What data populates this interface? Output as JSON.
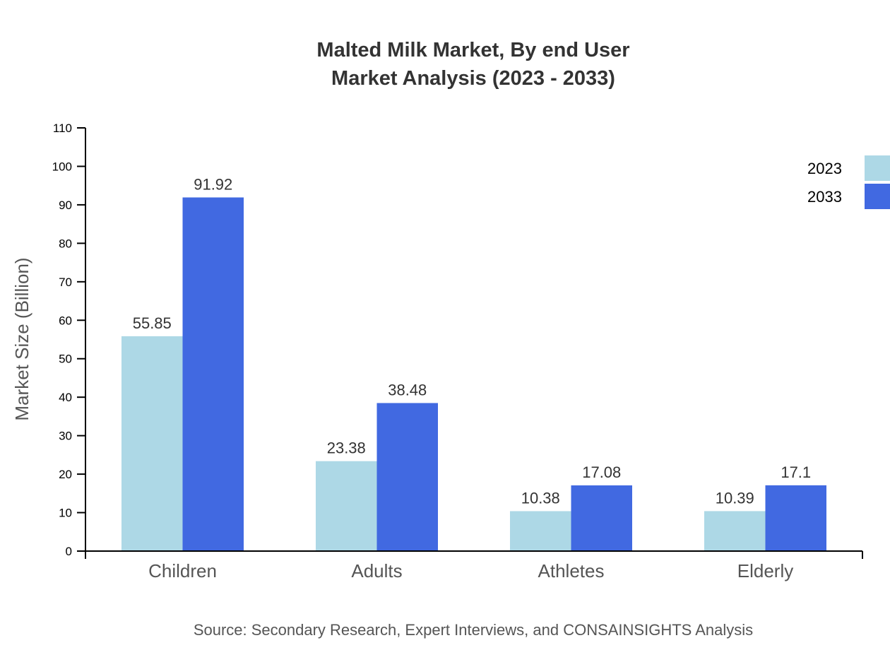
{
  "chart_data": {
    "type": "bar",
    "title": "Malted Milk Market, By end User",
    "subtitle": "Market Analysis (2023 - 2033)",
    "xlabel": "",
    "ylabel": "Market Size (Billion)",
    "ylim": [
      0,
      110
    ],
    "yticks": [
      0,
      10,
      20,
      30,
      40,
      50,
      60,
      70,
      80,
      90,
      100,
      110
    ],
    "categories": [
      "Children",
      "Adults",
      "Athletes",
      "Elderly"
    ],
    "series": [
      {
        "name": "2023",
        "color": "#ADD8E6",
        "values": [
          55.85,
          23.38,
          10.38,
          10.39
        ]
      },
      {
        "name": "2033",
        "color": "#4169E1",
        "values": [
          91.92,
          38.48,
          17.08,
          17.1
        ]
      }
    ],
    "grid": false,
    "legend_position": "top-right",
    "source": "Source: Secondary Research, Expert Interviews, and CONSAINSIGHTS Analysis"
  }
}
